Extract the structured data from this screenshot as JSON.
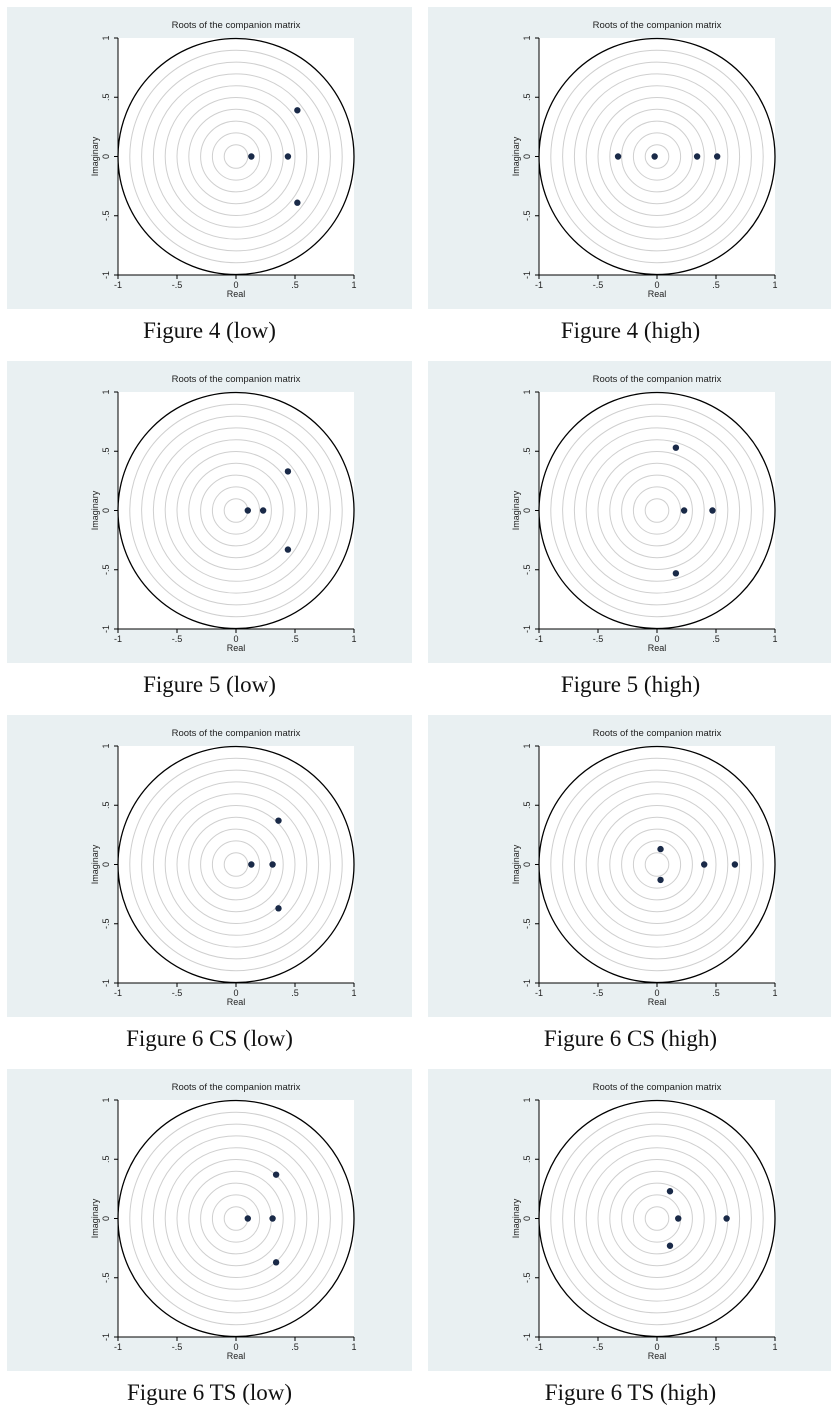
{
  "chart_data": [
    {
      "type": "scatter",
      "title": "Roots of the companion matrix",
      "xlabel": "Real",
      "ylabel": "Imaginary",
      "xlim": [
        -1,
        1
      ],
      "ylim": [
        -1,
        1
      ],
      "x_ticks": [
        "-1",
        "-.5",
        "0",
        ".5",
        "1"
      ],
      "y_ticks": [
        "1",
        ".5",
        "0",
        "-.5",
        "-1"
      ],
      "unit_circle": true,
      "caption": "Figure 4 (low)",
      "points": [
        {
          "x": 0.13,
          "y": 0.0
        },
        {
          "x": 0.44,
          "y": 0.0
        },
        {
          "x": 0.52,
          "y": 0.39
        },
        {
          "x": 0.52,
          "y": -0.39
        }
      ]
    },
    {
      "type": "scatter",
      "title": "Roots of the companion matrix",
      "xlabel": "Real",
      "ylabel": "Imaginary",
      "xlim": [
        -1,
        1
      ],
      "ylim": [
        -1,
        1
      ],
      "x_ticks": [
        "-1",
        "-.5",
        "0",
        ".5",
        "1"
      ],
      "y_ticks": [
        "1",
        ".5",
        "0",
        "-.5",
        "-1"
      ],
      "unit_circle": true,
      "caption": "Figure 4 (high)",
      "points": [
        {
          "x": -0.33,
          "y": 0.0
        },
        {
          "x": -0.02,
          "y": 0.0
        },
        {
          "x": 0.34,
          "y": 0.0
        },
        {
          "x": 0.51,
          "y": 0.0
        }
      ]
    },
    {
      "type": "scatter",
      "title": "Roots of the companion matrix",
      "xlabel": "Real",
      "ylabel": "Imaginary",
      "xlim": [
        -1,
        1
      ],
      "ylim": [
        -1,
        1
      ],
      "x_ticks": [
        "-1",
        "-.5",
        "0",
        ".5",
        "1"
      ],
      "y_ticks": [
        "1",
        ".5",
        "0",
        "-.5",
        "-1"
      ],
      "unit_circle": true,
      "caption": "Figure 5 (low)",
      "points": [
        {
          "x": 0.1,
          "y": 0.0
        },
        {
          "x": 0.23,
          "y": 0.0
        },
        {
          "x": 0.44,
          "y": 0.33
        },
        {
          "x": 0.44,
          "y": -0.33
        }
      ]
    },
    {
      "type": "scatter",
      "title": "Roots of the companion matrix",
      "xlabel": "Real",
      "ylabel": "Imaginary",
      "xlim": [
        -1,
        1
      ],
      "ylim": [
        -1,
        1
      ],
      "x_ticks": [
        "-1",
        "-.5",
        "0",
        ".5",
        "1"
      ],
      "y_ticks": [
        "1",
        ".5",
        "0",
        "-.5",
        "-1"
      ],
      "unit_circle": true,
      "caption": "Figure 5 (high)",
      "points": [
        {
          "x": 0.16,
          "y": 0.53
        },
        {
          "x": 0.23,
          "y": 0.0
        },
        {
          "x": 0.47,
          "y": 0.0
        },
        {
          "x": 0.16,
          "y": -0.53
        }
      ]
    },
    {
      "type": "scatter",
      "title": "Roots of the companion matrix",
      "xlabel": "Real",
      "ylabel": "Imaginary",
      "xlim": [
        -1,
        1
      ],
      "ylim": [
        -1,
        1
      ],
      "x_ticks": [
        "-1",
        "-.5",
        "0",
        ".5",
        "1"
      ],
      "y_ticks": [
        "1",
        ".5",
        "0",
        "-.5",
        "-1"
      ],
      "unit_circle": true,
      "caption": "Figure 6 CS (low)",
      "points": [
        {
          "x": 0.13,
          "y": 0.0
        },
        {
          "x": 0.31,
          "y": 0.0
        },
        {
          "x": 0.36,
          "y": 0.37
        },
        {
          "x": 0.36,
          "y": -0.37
        }
      ]
    },
    {
      "type": "scatter",
      "title": "Roots of the companion matrix",
      "xlabel": "Real",
      "ylabel": "Imaginary",
      "xlim": [
        -1,
        1
      ],
      "ylim": [
        -1,
        1
      ],
      "x_ticks": [
        "-1",
        "-.5",
        "0",
        ".5",
        "1"
      ],
      "y_ticks": [
        "1",
        ".5",
        "0",
        "-.5",
        "-1"
      ],
      "unit_circle": true,
      "caption": "Figure 6 CS (high)",
      "points": [
        {
          "x": 0.03,
          "y": 0.13
        },
        {
          "x": 0.03,
          "y": -0.13
        },
        {
          "x": 0.4,
          "y": 0.0
        },
        {
          "x": 0.66,
          "y": 0.0
        }
      ]
    },
    {
      "type": "scatter",
      "title": "Roots of the companion matrix",
      "xlabel": "Real",
      "ylabel": "Imaginary",
      "xlim": [
        -1,
        1
      ],
      "ylim": [
        -1,
        1
      ],
      "x_ticks": [
        "-1",
        "-.5",
        "0",
        ".5",
        "1"
      ],
      "y_ticks": [
        "1",
        ".5",
        "0",
        "-.5",
        "-1"
      ],
      "unit_circle": true,
      "caption": "Figure 6 TS (low)",
      "points": [
        {
          "x": 0.1,
          "y": 0.0
        },
        {
          "x": 0.31,
          "y": 0.0
        },
        {
          "x": 0.34,
          "y": 0.37
        },
        {
          "x": 0.34,
          "y": -0.37
        }
      ]
    },
    {
      "type": "scatter",
      "title": "Roots of the companion matrix",
      "xlabel": "Real",
      "ylabel": "Imaginary",
      "xlim": [
        -1,
        1
      ],
      "ylim": [
        -1,
        1
      ],
      "x_ticks": [
        "-1",
        "-.5",
        "0",
        ".5",
        "1"
      ],
      "y_ticks": [
        "1",
        ".5",
        "0",
        "-.5",
        "-1"
      ],
      "unit_circle": true,
      "caption": "Figure 6 TS (high)",
      "points": [
        {
          "x": 0.11,
          "y": 0.23
        },
        {
          "x": 0.18,
          "y": 0.0
        },
        {
          "x": 0.59,
          "y": 0.0
        },
        {
          "x": 0.11,
          "y": -0.23
        }
      ]
    }
  ],
  "colors": {
    "panel_background": "#e9f0f2",
    "plot_background": "#ffffff",
    "unit_circle": "#000000",
    "grid_circle": "#cfcfcf",
    "marker": "#1a2a48"
  }
}
